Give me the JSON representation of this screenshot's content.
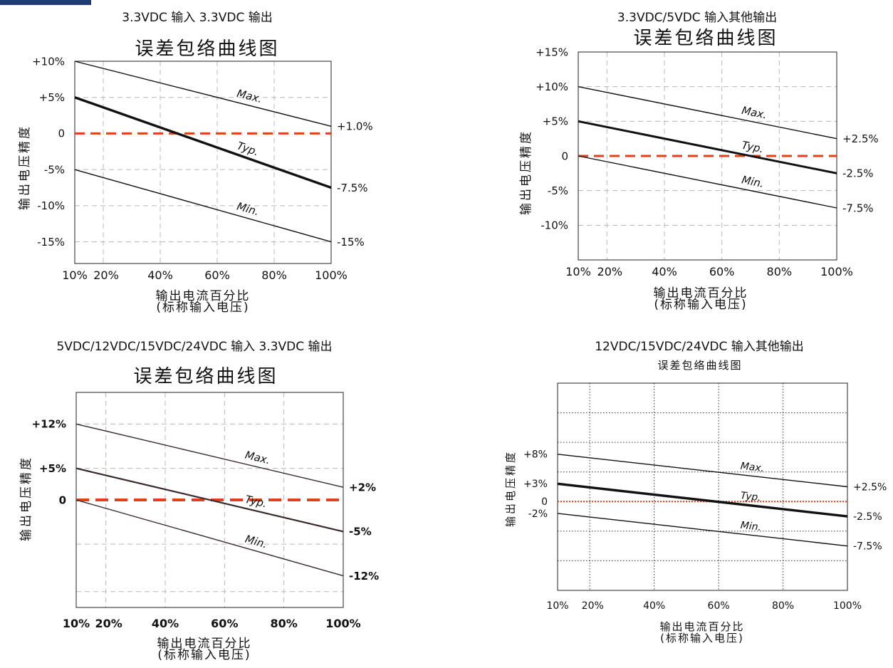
{
  "colors": {
    "ref_line": "#e0401a",
    "ref_line_dotted": "#e63a1a",
    "grid": "#b8b8b8",
    "line": "#111111"
  },
  "chart_data": [
    {
      "type": "line",
      "title": "3.3VDC 输入 3.3VDC 输出",
      "subtitle": "误差包络曲线图",
      "ylabel": "输出电压精度",
      "xlabel": "输出电流百分比",
      "xlabel2": "(标称输入电压)",
      "xlim": [
        10,
        100
      ],
      "ylim": [
        -18,
        10
      ],
      "x_ticks": [
        "10%",
        "20%",
        "40%",
        "60%",
        "80%",
        "100%"
      ],
      "y_ticks": [
        {
          "label": "+10%",
          "value": 10
        },
        {
          "label": "+5%",
          "value": 5
        },
        {
          "label": "0",
          "value": 0
        },
        {
          "label": "-5%",
          "value": -5
        },
        {
          "label": "-10%",
          "value": -10
        },
        {
          "label": "-15%",
          "value": -15
        }
      ],
      "end_labels": [
        {
          "label": "+1.0%",
          "value": 1
        },
        {
          "label": "-7.5%",
          "value": -7.5
        },
        {
          "label": "-15%",
          "value": -15
        }
      ],
      "series": [
        {
          "name": "Max.",
          "x": [
            10,
            100
          ],
          "values": [
            10,
            1
          ]
        },
        {
          "name": "Typ.",
          "x": [
            10,
            100
          ],
          "values": [
            5,
            -7.5
          ]
        },
        {
          "name": "Min.",
          "x": [
            10,
            100
          ],
          "values": [
            -5,
            -15
          ]
        }
      ],
      "reference_line": 0,
      "grid": true
    },
    {
      "type": "line",
      "title": "3.3VDC/5VDC 输入其他输出",
      "subtitle": "误差包络曲线图",
      "ylabel": "输出电压精度",
      "xlabel": "输出电流百分比",
      "xlabel2": "(标称输入电压)",
      "xlim": [
        10,
        100
      ],
      "ylim": [
        -15,
        15
      ],
      "x_ticks": [
        "10%",
        "20%",
        "40%",
        "60%",
        "80%",
        "100%"
      ],
      "y_ticks": [
        {
          "label": "+15%",
          "value": 15
        },
        {
          "label": "+10%",
          "value": 10
        },
        {
          "label": "+5%",
          "value": 5
        },
        {
          "label": "0",
          "value": 0
        },
        {
          "label": "-5%",
          "value": -5
        },
        {
          "label": "-10%",
          "value": -10
        }
      ],
      "end_labels": [
        {
          "label": "+2.5%",
          "value": 2.5
        },
        {
          "label": "-2.5%",
          "value": -2.5
        },
        {
          "label": "-7.5%",
          "value": -7.5
        }
      ],
      "series": [
        {
          "name": "Max.",
          "x": [
            10,
            100
          ],
          "values": [
            10,
            2.5
          ]
        },
        {
          "name": "Typ.",
          "x": [
            10,
            100
          ],
          "values": [
            5,
            -2.5
          ]
        },
        {
          "name": "Min.",
          "x": [
            10,
            100
          ],
          "values": [
            0,
            -7.5
          ]
        }
      ],
      "reference_line": 0,
      "grid": true
    },
    {
      "type": "line",
      "title": "5VDC/12VDC/15VDC/24VDC 输入 3.3VDC 输出",
      "subtitle": "误差包络曲线图",
      "ylabel": "输出电压精度",
      "xlabel": "输出电流百分比",
      "xlabel2": "(标称输入电压)",
      "xlim": [
        10,
        100
      ],
      "ylim": [
        -17,
        17
      ],
      "x_ticks": [
        "10%",
        "20%",
        "40%",
        "60%",
        "80%",
        "100%"
      ],
      "y_ticks": [
        {
          "label": "+12%",
          "value": 12
        },
        {
          "label": "+5%",
          "value": 5
        },
        {
          "label": "0",
          "value": 0
        }
      ],
      "end_labels": [
        {
          "label": "+2%",
          "value": 2
        },
        {
          "label": "-5%",
          "value": -5
        },
        {
          "label": "-12%",
          "value": -12
        }
      ],
      "series": [
        {
          "name": "Max.",
          "x": [
            10,
            100
          ],
          "values": [
            12,
            2
          ]
        },
        {
          "name": "Typ.",
          "x": [
            10,
            100
          ],
          "values": [
            5,
            -5
          ]
        },
        {
          "name": "Min.",
          "x": [
            10,
            100
          ],
          "values": [
            0,
            -12
          ]
        }
      ],
      "reference_line": 0,
      "grid": true
    },
    {
      "type": "line",
      "title": "12VDC/15VDC/24VDC 输入其他输出",
      "subtitle": "误差包络曲线图",
      "ylabel": "输出电压精度",
      "xlabel": "输出电流百分比",
      "xlabel2": "(标称输入电压)",
      "xlim": [
        10,
        100
      ],
      "ylim": [
        -15,
        20
      ],
      "x_ticks": [
        "10%",
        "20%",
        "40%",
        "60%",
        "80%",
        "100%"
      ],
      "y_ticks": [
        {
          "label": "+8%",
          "value": 8
        },
        {
          "label": "+3%",
          "value": 3
        },
        {
          "label": "0",
          "value": 0
        },
        {
          "label": "-2%",
          "value": -2
        }
      ],
      "end_labels": [
        {
          "label": "+2.5%",
          "value": 2.5
        },
        {
          "label": "-2.5%",
          "value": -2.5
        },
        {
          "label": "-7.5%",
          "value": -7.5
        }
      ],
      "series": [
        {
          "name": "Max.",
          "x": [
            10,
            100
          ],
          "values": [
            8,
            2.5
          ]
        },
        {
          "name": "Typ.",
          "x": [
            10,
            100
          ],
          "values": [
            3,
            -2.5
          ]
        },
        {
          "name": "Min.",
          "x": [
            10,
            100
          ],
          "values": [
            -2,
            -7.5
          ]
        }
      ],
      "reference_line": 0,
      "grid": true
    }
  ]
}
